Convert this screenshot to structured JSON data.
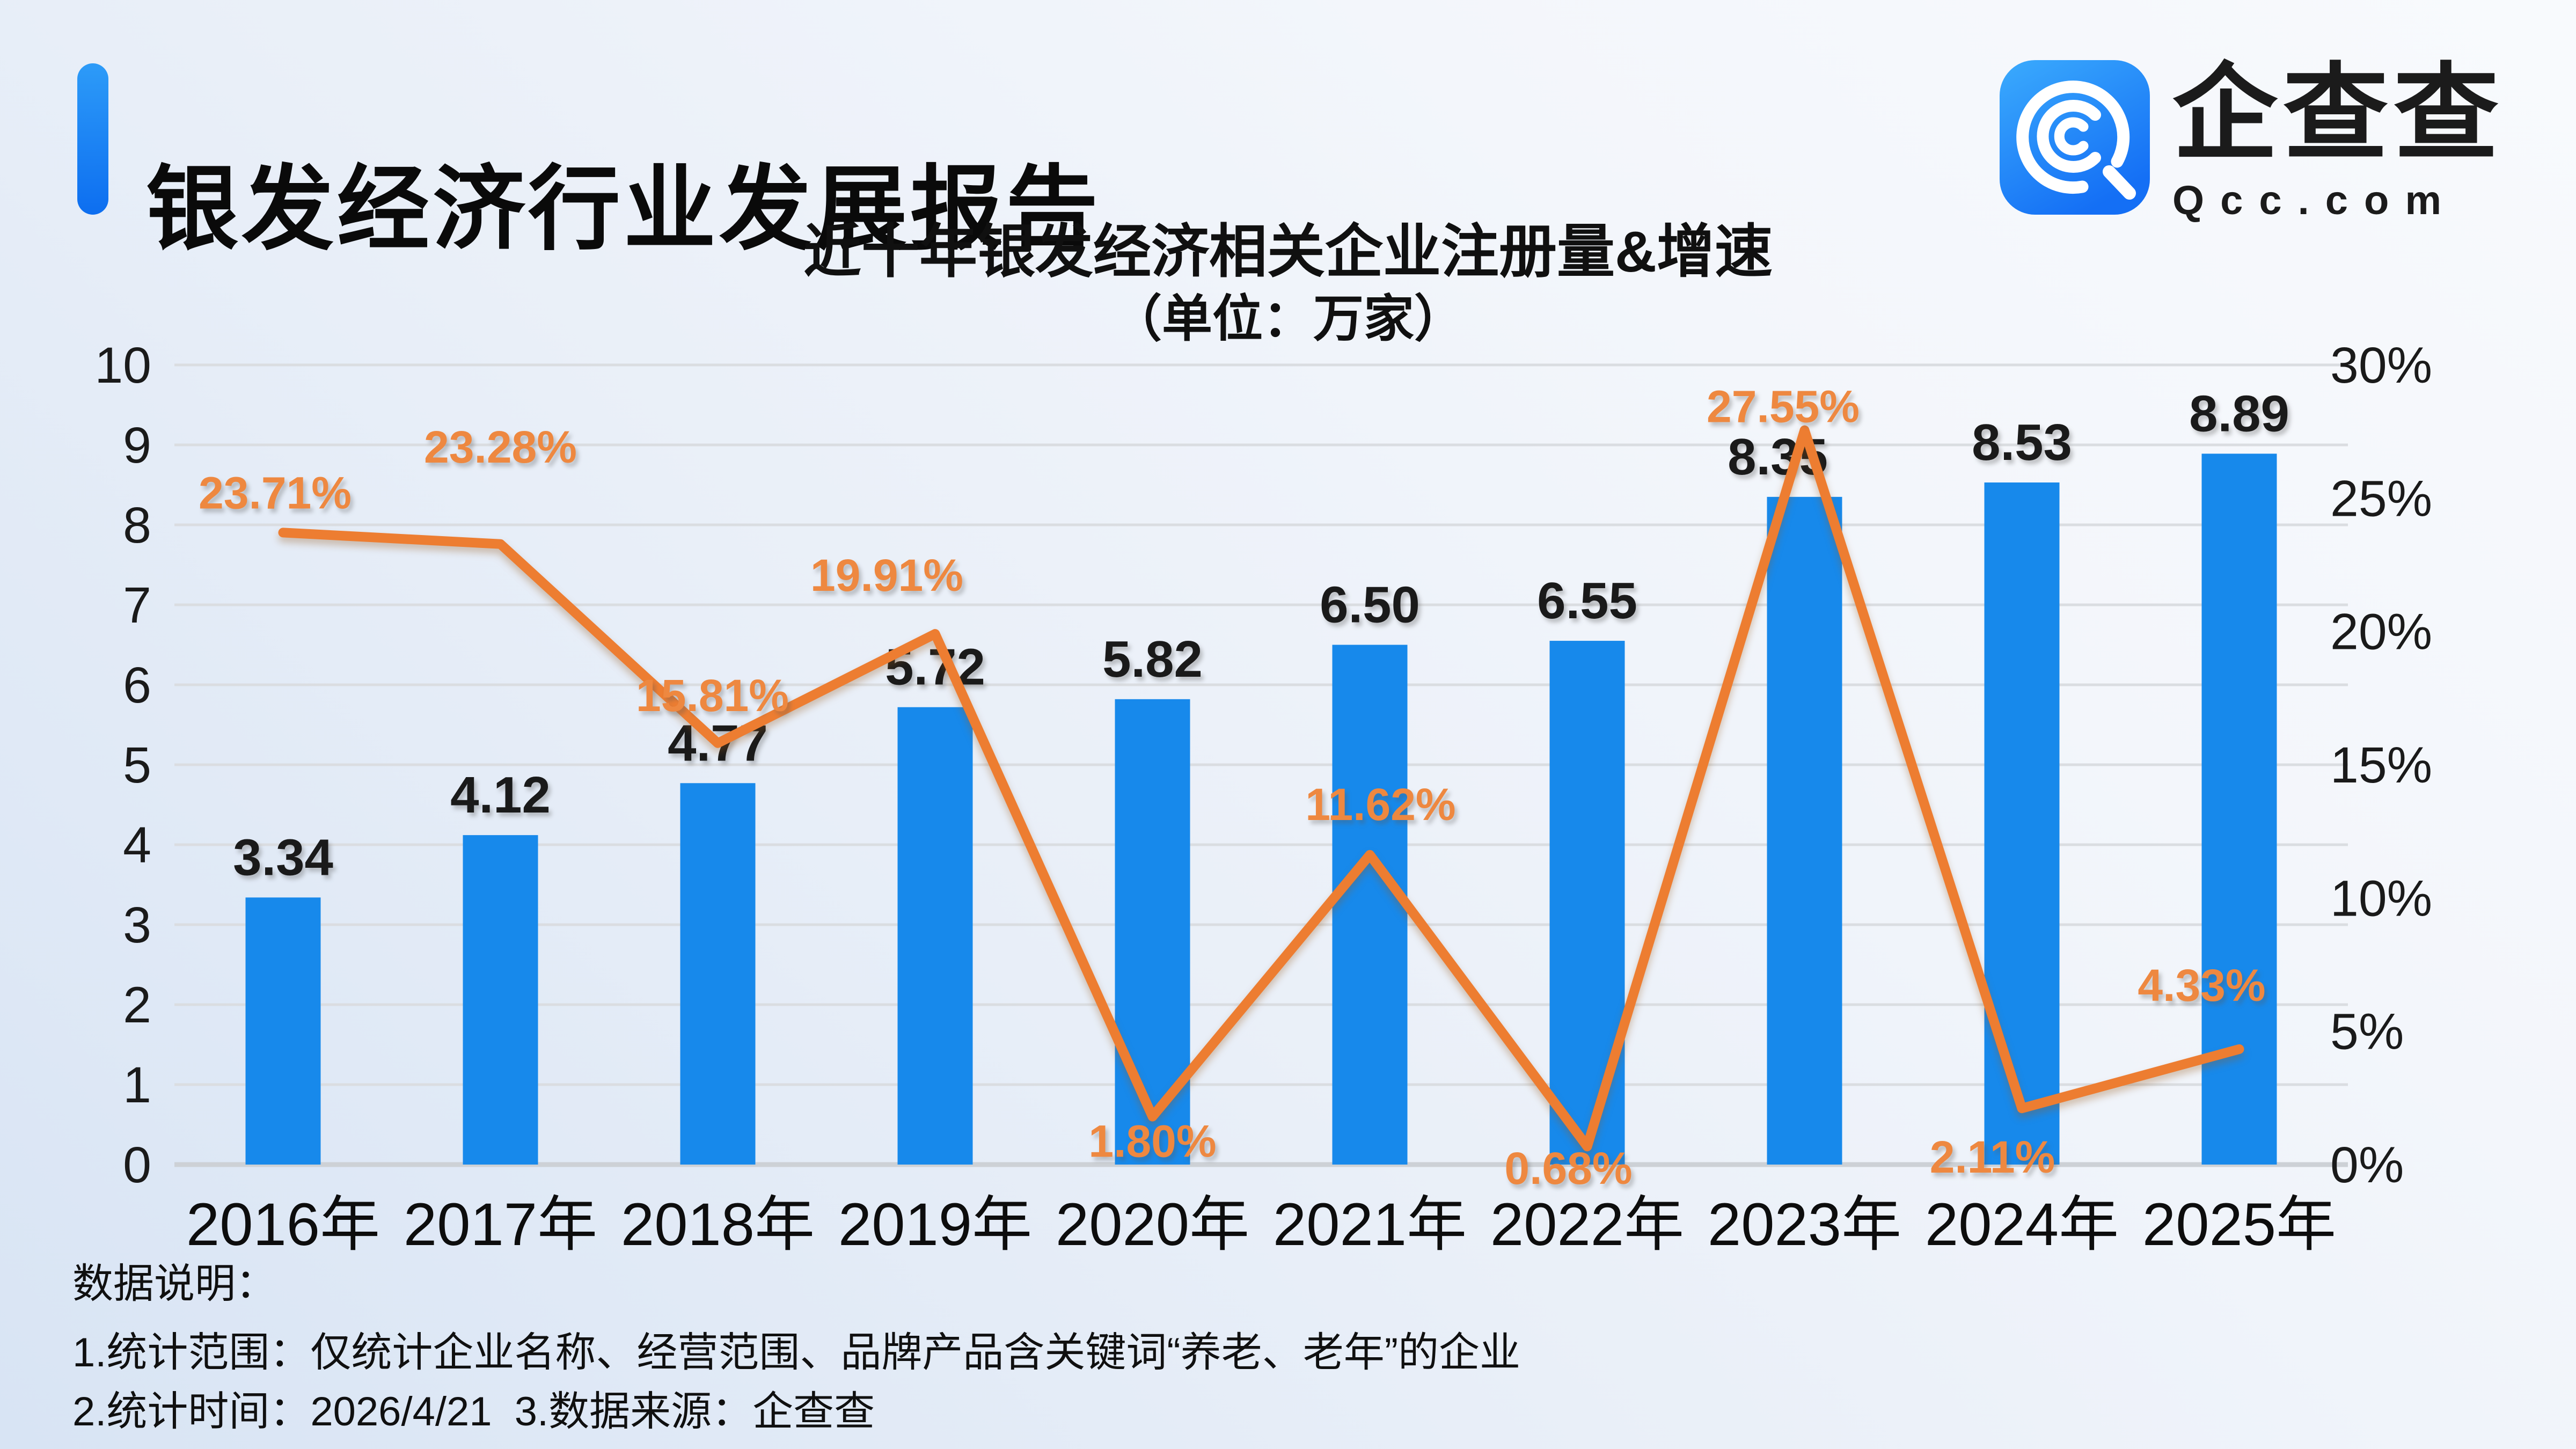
{
  "header": {
    "title": "银发经济行业发展报告",
    "logo": {
      "text": "企查查",
      "domain": "Qcc.com"
    }
  },
  "chart_data": {
    "type": "combo",
    "title": "近十年银发经济相关企业注册量&增速",
    "subtitle": "（单位：万家）",
    "categories": [
      "2016年",
      "2017年",
      "2018年",
      "2019年",
      "2020年",
      "2021年",
      "2022年",
      "2023年",
      "2024年",
      "2025年"
    ],
    "series": [
      {
        "name": "注册量",
        "type": "bar",
        "axis": "left",
        "values": [
          3.34,
          4.12,
          4.77,
          5.72,
          5.82,
          6.5,
          6.55,
          8.35,
          8.53,
          8.89
        ],
        "labels": [
          "3.34",
          "4.12",
          "4.77",
          "5.72",
          "5.82",
          "6.50",
          "6.55",
          "8.35",
          "8.53",
          "8.89"
        ]
      },
      {
        "name": "增速",
        "type": "line",
        "axis": "right",
        "values": [
          23.71,
          23.28,
          15.81,
          19.91,
          1.8,
          11.62,
          0.68,
          27.55,
          2.11,
          4.33
        ],
        "labels": [
          "23.71%",
          "23.28%",
          "15.81%",
          "19.91%",
          "1.80%",
          "11.62%",
          "0.68%",
          "27.55%",
          "2.11%",
          "4.33%"
        ]
      }
    ],
    "left_axis": {
      "min": 0,
      "max": 10,
      "ticks": [
        0,
        1,
        2,
        3,
        4,
        5,
        6,
        7,
        8,
        9,
        10
      ]
    },
    "right_axis": {
      "min": 0,
      "max": 30,
      "ticks": [
        0,
        5,
        10,
        15,
        20,
        25,
        30
      ],
      "suffix": "%"
    },
    "grid": true,
    "legend": false,
    "colors": {
      "bar": "#1789EB",
      "line": "#ED7D31",
      "pct_label": "#EE8840",
      "value_label": "#1a1a1a"
    }
  },
  "footer": {
    "heading": "数据说明：",
    "line1": "1.统计范围：仅统计企业名称、经营范围、品牌产品含关键词“养老、老年”的企业",
    "line2": "2.统计时间：2026/4/21  3.数据来源：企查查"
  }
}
